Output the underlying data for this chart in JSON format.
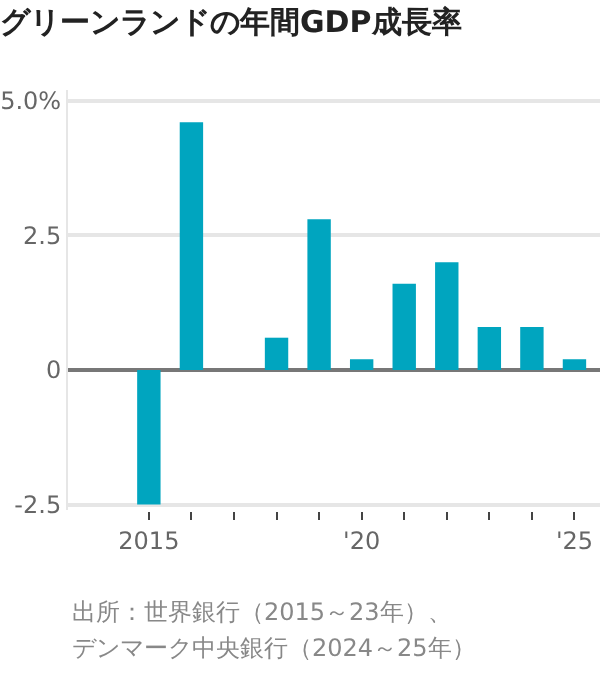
{
  "chart_data": {
    "type": "bar",
    "title": "グリーンランドの年間GDP成長率",
    "x": [
      2015,
      2016,
      2017,
      2018,
      2019,
      2020,
      2021,
      2022,
      2023,
      2024,
      2025
    ],
    "values": [
      -2.5,
      4.6,
      null,
      0.6,
      2.8,
      0.2,
      1.6,
      2.0,
      0.8,
      0.8,
      0.2
    ],
    "color": "#00a5bf",
    "xlim": [
      2013.1,
      2025.6
    ],
    "xticks": [
      {
        "value": 2015,
        "label": "2015"
      },
      {
        "value": 2016,
        "label": null
      },
      {
        "value": 2017,
        "label": null
      },
      {
        "value": 2018,
        "label": null
      },
      {
        "value": 2019,
        "label": null
      },
      {
        "value": 2020,
        "label": "'20"
      },
      {
        "value": 2021,
        "label": null
      },
      {
        "value": 2022,
        "label": null
      },
      {
        "value": 2023,
        "label": null
      },
      {
        "value": 2024,
        "label": null
      },
      {
        "value": 2025,
        "label": "'25"
      }
    ],
    "ylim": [
      -2.6,
      5.2
    ],
    "yticks": [
      {
        "value": 5,
        "label": "5.0%"
      },
      2.5,
      0,
      -2.5
    ],
    "grid": "y",
    "annotations": [
      "出所：世界銀行（2015～23年）、",
      "デンマーク中央銀行（2024～25年）"
    ]
  }
}
